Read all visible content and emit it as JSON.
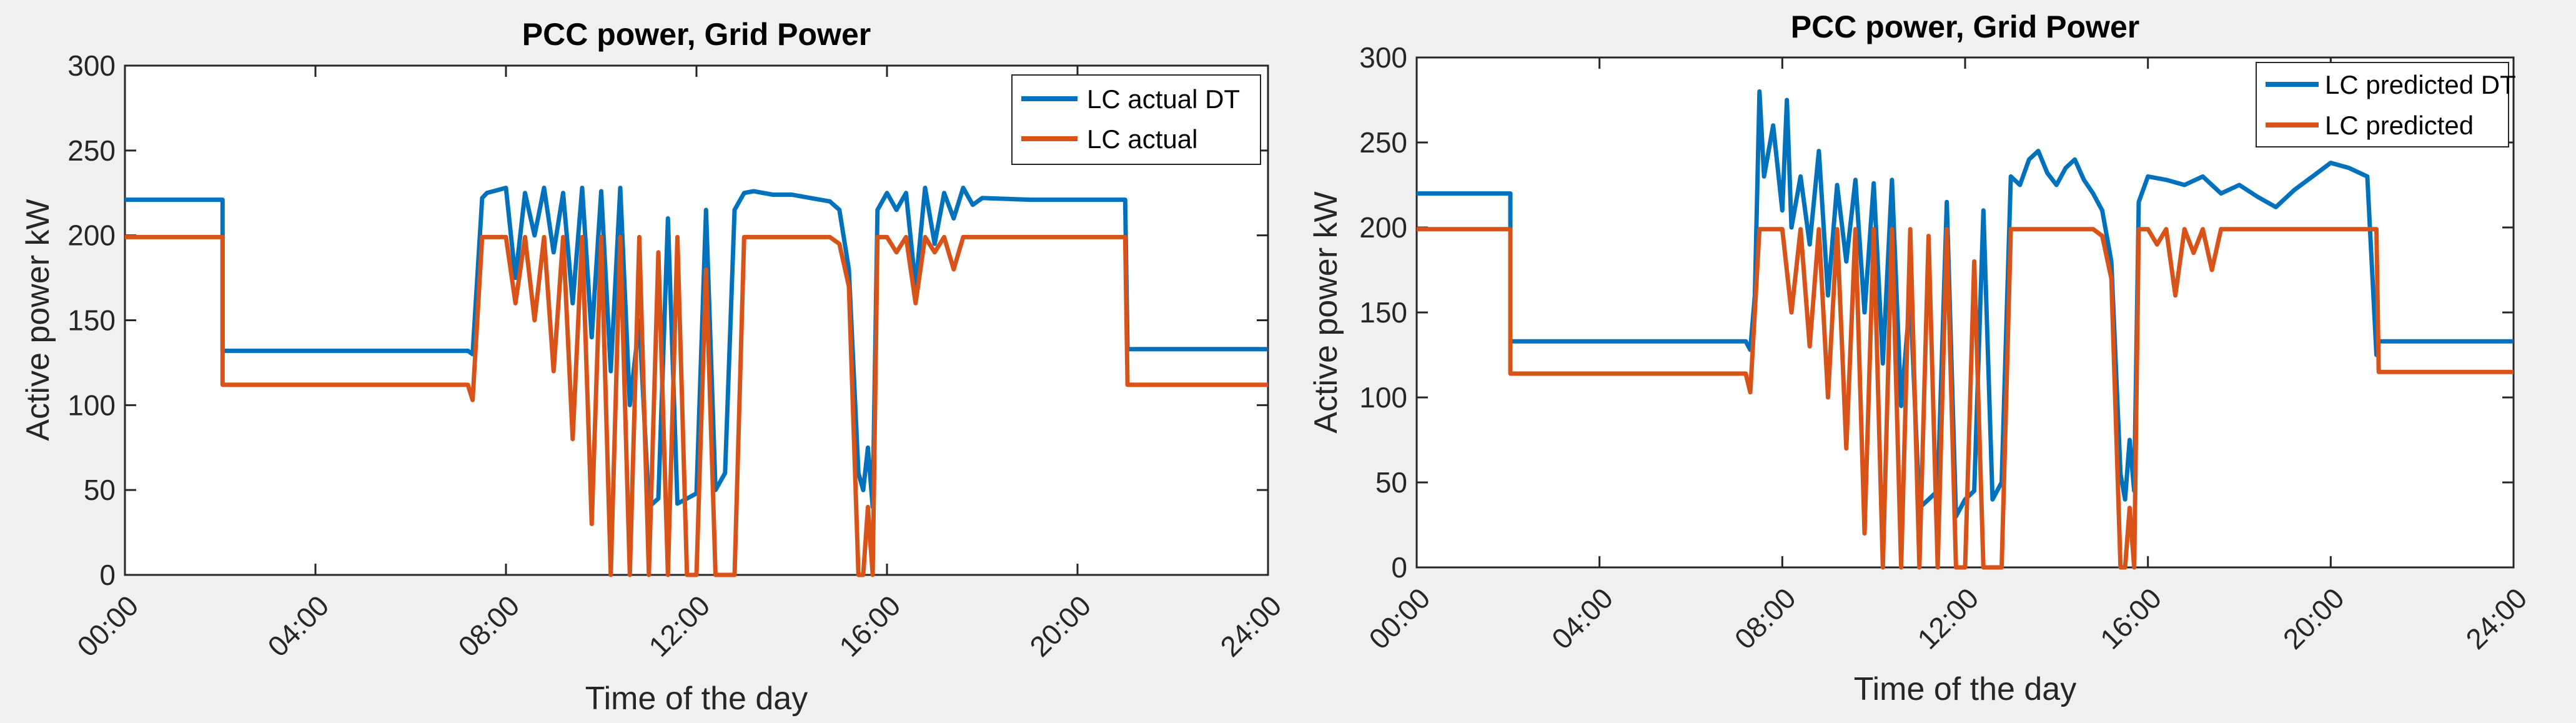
{
  "figure": {
    "background": "#f0f0f0"
  },
  "chart_data": [
    {
      "type": "line",
      "title": "PCC power, Grid Power",
      "xlabel": "Time of the day",
      "ylabel": "Active power kW",
      "xlim": [
        0,
        24
      ],
      "ylim": [
        0,
        300
      ],
      "x_tick_values": [
        0,
        4,
        8,
        12,
        16,
        20,
        24
      ],
      "x_tick_labels": [
        "00:00",
        "04:00",
        "08:00",
        "12:00",
        "16:00",
        "20:00",
        "24:00"
      ],
      "y_tick_values": [
        0,
        50,
        100,
        150,
        200,
        250,
        300
      ],
      "y_tick_labels": [
        "0",
        "50",
        "100",
        "150",
        "200",
        "250",
        "300"
      ],
      "legend_location": "top-right",
      "series": [
        {
          "name": "LC actual DT",
          "color": "#0072BD",
          "x": [
            0,
            2.05,
            2.05,
            7.2,
            7.3,
            7.5,
            7.6,
            8.0,
            8.2,
            8.4,
            8.6,
            8.8,
            9.0,
            9.2,
            9.4,
            9.6,
            9.8,
            10.0,
            10.2,
            10.4,
            10.6,
            10.8,
            11.0,
            11.2,
            11.4,
            11.6,
            11.8,
            12.0,
            12.2,
            12.4,
            12.6,
            12.8,
            13.0,
            13.2,
            13.6,
            14.0,
            14.4,
            14.8,
            15.0,
            15.2,
            15.4,
            15.5,
            15.6,
            15.7,
            15.8,
            16.0,
            16.2,
            16.4,
            16.6,
            16.8,
            17.0,
            17.2,
            17.4,
            17.6,
            17.8,
            18.0,
            19.0,
            20.0,
            21.0,
            21.05,
            24.0
          ],
          "values": [
            221,
            221,
            132,
            132,
            130,
            222,
            225,
            228,
            175,
            225,
            200,
            228,
            190,
            225,
            160,
            228,
            140,
            226,
            120,
            228,
            100,
            150,
            40,
            45,
            210,
            42,
            45,
            48,
            215,
            50,
            60,
            215,
            225,
            226,
            224,
            224,
            222,
            220,
            215,
            180,
            60,
            50,
            75,
            40,
            215,
            225,
            215,
            225,
            170,
            228,
            195,
            225,
            210,
            228,
            218,
            222,
            221,
            221,
            221,
            133,
            133
          ]
        },
        {
          "name": "LC actual",
          "color": "#D95319",
          "x": [
            0,
            2.05,
            2.05,
            7.2,
            7.3,
            7.5,
            7.6,
            8.0,
            8.2,
            8.4,
            8.6,
            8.8,
            9.0,
            9.2,
            9.4,
            9.6,
            9.8,
            10.0,
            10.2,
            10.4,
            10.6,
            10.8,
            11.0,
            11.2,
            11.4,
            11.6,
            11.8,
            12.0,
            12.2,
            12.4,
            12.6,
            12.8,
            13.0,
            13.2,
            13.6,
            14.0,
            14.4,
            14.8,
            15.0,
            15.2,
            15.4,
            15.5,
            15.6,
            15.7,
            15.8,
            16.0,
            16.2,
            16.4,
            16.6,
            16.8,
            17.0,
            17.2,
            17.4,
            17.6,
            17.8,
            18.0,
            19.0,
            20.0,
            21.0,
            21.05,
            24.0
          ],
          "values": [
            199,
            199,
            112,
            112,
            103,
            199,
            199,
            199,
            160,
            199,
            150,
            199,
            120,
            199,
            80,
            199,
            30,
            199,
            0,
            199,
            0,
            199,
            0,
            190,
            0,
            199,
            0,
            0,
            180,
            0,
            0,
            0,
            199,
            199,
            199,
            199,
            199,
            199,
            195,
            170,
            0,
            0,
            40,
            0,
            199,
            199,
            190,
            199,
            160,
            199,
            190,
            199,
            180,
            199,
            199,
            199,
            199,
            199,
            199,
            112,
            112
          ]
        }
      ]
    },
    {
      "type": "line",
      "title": "PCC power, Grid Power",
      "xlabel": "Time of the day",
      "ylabel": "Active power kW",
      "xlim": [
        0,
        24
      ],
      "ylim": [
        0,
        300
      ],
      "x_tick_values": [
        0,
        4,
        8,
        12,
        16,
        20,
        24
      ],
      "x_tick_labels": [
        "00:00",
        "04:00",
        "08:00",
        "12:00",
        "16:00",
        "20:00",
        "24:00"
      ],
      "y_tick_values": [
        0,
        50,
        100,
        150,
        200,
        250,
        300
      ],
      "y_tick_labels": [
        "0",
        "50",
        "100",
        "150",
        "200",
        "250",
        "300"
      ],
      "legend_location": "top-right",
      "series": [
        {
          "name": "LC predicted DT",
          "color": "#0072BD",
          "x": [
            0,
            2.05,
            2.05,
            7.2,
            7.3,
            7.4,
            7.5,
            7.6,
            7.8,
            8.0,
            8.1,
            8.2,
            8.4,
            8.6,
            8.8,
            9.0,
            9.2,
            9.4,
            9.6,
            9.8,
            10.0,
            10.2,
            10.4,
            10.6,
            10.8,
            11.0,
            11.2,
            11.4,
            11.6,
            11.8,
            12.0,
            12.2,
            12.4,
            12.6,
            12.8,
            13.0,
            13.2,
            13.4,
            13.6,
            13.8,
            14.0,
            14.2,
            14.4,
            14.6,
            14.8,
            15.0,
            15.2,
            15.4,
            15.5,
            15.6,
            15.7,
            15.8,
            16.0,
            16.4,
            16.8,
            17.2,
            17.6,
            18.0,
            18.4,
            18.8,
            19.2,
            19.6,
            20.0,
            20.4,
            20.8,
            21.0,
            21.05,
            24.0
          ],
          "values": [
            220,
            220,
            133,
            133,
            128,
            160,
            280,
            230,
            260,
            210,
            275,
            200,
            230,
            190,
            245,
            160,
            225,
            180,
            228,
            150,
            226,
            120,
            228,
            95,
            160,
            35,
            40,
            45,
            215,
            30,
            40,
            45,
            210,
            40,
            50,
            230,
            225,
            240,
            245,
            232,
            225,
            235,
            240,
            228,
            220,
            210,
            180,
            55,
            40,
            75,
            45,
            215,
            230,
            228,
            225,
            230,
            220,
            225,
            218,
            212,
            222,
            230,
            238,
            235,
            230,
            125,
            133,
            133
          ]
        },
        {
          "name": "LC predicted",
          "color": "#D95319",
          "x": [
            0,
            2.05,
            2.05,
            7.2,
            7.3,
            7.5,
            7.6,
            8.0,
            8.2,
            8.4,
            8.6,
            8.8,
            9.0,
            9.2,
            9.4,
            9.6,
            9.8,
            10.0,
            10.2,
            10.4,
            10.6,
            10.8,
            11.0,
            11.2,
            11.4,
            11.6,
            11.8,
            12.0,
            12.2,
            12.4,
            12.6,
            12.8,
            13.0,
            13.2,
            13.6,
            14.0,
            14.4,
            14.8,
            15.0,
            15.2,
            15.4,
            15.5,
            15.6,
            15.7,
            15.8,
            16.0,
            16.2,
            16.4,
            16.6,
            16.8,
            17.0,
            17.2,
            17.4,
            17.6,
            17.8,
            18.0,
            19.0,
            20.0,
            21.0,
            21.05,
            24.0
          ],
          "values": [
            199,
            199,
            114,
            114,
            103,
            199,
            199,
            199,
            150,
            199,
            130,
            199,
            100,
            199,
            70,
            199,
            20,
            199,
            0,
            199,
            0,
            199,
            0,
            195,
            0,
            199,
            0,
            0,
            180,
            0,
            0,
            0,
            199,
            199,
            199,
            199,
            199,
            199,
            195,
            170,
            0,
            0,
            35,
            0,
            199,
            199,
            190,
            199,
            160,
            199,
            185,
            199,
            175,
            199,
            199,
            199,
            199,
            199,
            199,
            115,
            115
          ]
        }
      ]
    }
  ]
}
